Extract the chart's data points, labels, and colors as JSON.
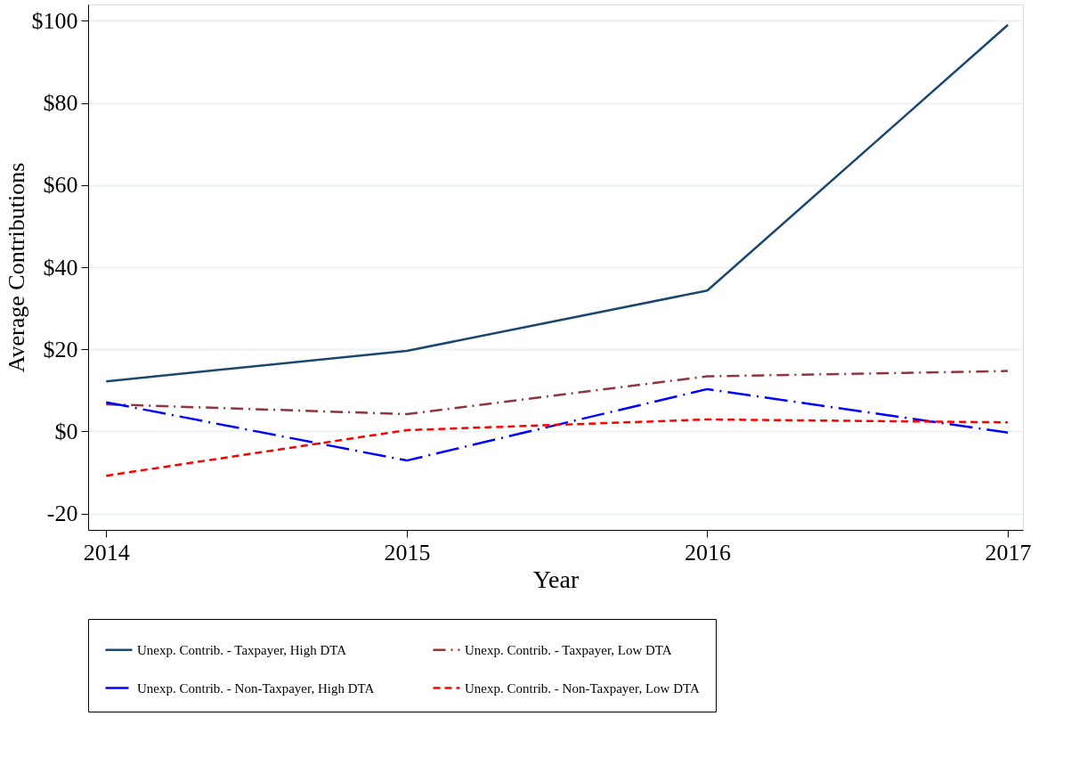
{
  "chart_data": {
    "type": "line",
    "xlabel": "Year",
    "ylabel": "Average Contributions",
    "x": [
      2014,
      2015,
      2016,
      2017
    ],
    "xlim": [
      2013.94,
      2017.05
    ],
    "xticks": [
      2014,
      2015,
      2016,
      2017
    ],
    "ylim": [
      -24,
      104
    ],
    "yticks": [
      {
        "value": -20,
        "label": "-20"
      },
      {
        "value": 0,
        "label": "$0"
      },
      {
        "value": 20,
        "label": "$20"
      },
      {
        "value": 40,
        "label": "$40"
      },
      {
        "value": 60,
        "label": "$60"
      },
      {
        "value": 80,
        "label": "$80"
      },
      {
        "value": 100,
        "label": "$100"
      }
    ],
    "grid": "y",
    "legend": "bottom",
    "marker": "none",
    "series": [
      {
        "name": "Unexp. Contrib. - Taxpayer, High DTA",
        "color": "#1a476f",
        "line_style": "solid",
        "values": [
          12.2,
          19.6,
          34.3,
          99
        ]
      },
      {
        "name": "Unexp. Contrib. - Taxpayer, Low DTA",
        "color": "#90353b",
        "line_style": "dashdot",
        "values": [
          6.6,
          4.2,
          13.4,
          14.7
        ]
      },
      {
        "name": "Unexp. Contrib. - Non-Taxpayer, High DTA",
        "color": "#0000ff",
        "line_style": "longdashdot",
        "values": [
          7.1,
          -7.1,
          10.3,
          -0.3
        ]
      },
      {
        "name": "Unexp. Contrib. - Non-Taxpayer, Low DTA",
        "color": "#ff0000",
        "line_style": "dashed",
        "values": [
          -10.8,
          0.3,
          2.9,
          2.2
        ]
      }
    ]
  }
}
